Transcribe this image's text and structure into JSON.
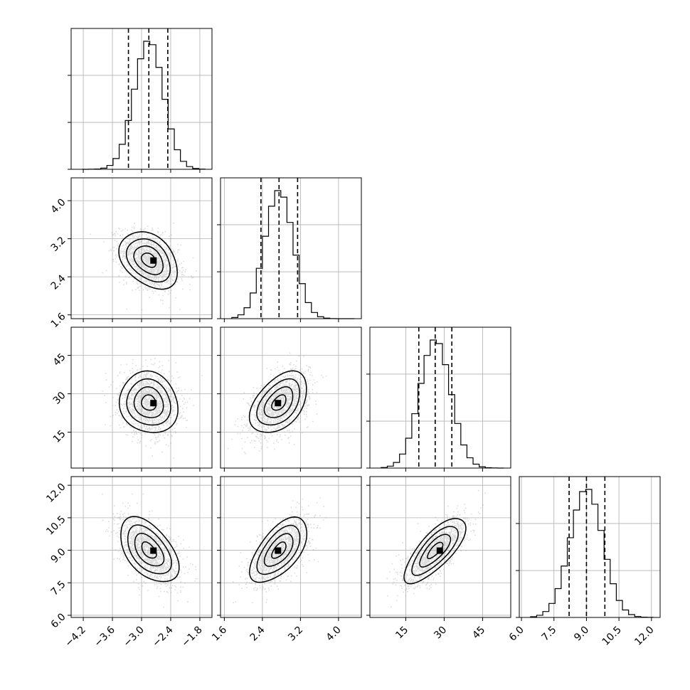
{
  "chart_data": {
    "type": "corner",
    "title": "",
    "grid": true,
    "params": [
      {
        "label": "",
        "range": [
          -4.45,
          -1.55
        ],
        "ticks": [
          -4.2,
          -3.6,
          -3.0,
          -2.4,
          -1.8
        ],
        "tick_labels": [
          "−4.2",
          "−3.6",
          "−3.0",
          "−2.4",
          "−1.8"
        ],
        "median": -2.85,
        "std": 0.3,
        "quantiles": [
          -3.27,
          -2.85,
          -2.46
        ]
      },
      {
        "label": "",
        "range": [
          1.52,
          4.48
        ],
        "ticks": [
          1.6,
          2.4,
          3.2,
          4.0
        ],
        "tick_labels": [
          "1.6",
          "2.4",
          "3.2",
          "4.0"
        ],
        "median": 2.75,
        "std": 0.3,
        "quantiles": [
          2.37,
          2.75,
          3.14
        ]
      },
      {
        "label": "",
        "range": [
          1.0,
          56.0
        ],
        "ticks": [
          15,
          30,
          45
        ],
        "tick_labels": [
          "15",
          "30",
          "45"
        ],
        "median": 26.5,
        "std": 6.0,
        "quantiles": [
          20.1,
          26.5,
          33.0
        ]
      },
      {
        "label": "",
        "range": [
          5.9,
          12.4
        ],
        "ticks": [
          6.0,
          7.5,
          9.0,
          10.5,
          12.0
        ],
        "tick_labels": [
          "6.0",
          "7.5",
          "9.0",
          "10.5",
          "12.0"
        ],
        "median": 9.0,
        "std": 0.75,
        "quantiles": [
          8.2,
          9.0,
          9.85
        ]
      }
    ],
    "correlations": [
      {
        "i": 1,
        "j": 0,
        "r": -0.35
      },
      {
        "i": 2,
        "j": 0,
        "r": -0.1
      },
      {
        "i": 2,
        "j": 1,
        "r": 0.45
      },
      {
        "i": 3,
        "j": 0,
        "r": -0.5
      },
      {
        "i": 3,
        "j": 1,
        "r": 0.6
      },
      {
        "i": 3,
        "j": 2,
        "r": 0.75
      }
    ],
    "contour_levels_sigma": [
      0.5,
      1.0,
      1.5,
      2.0
    ],
    "histogram_bins": 20,
    "n_samples_per_panel": 1600
  }
}
